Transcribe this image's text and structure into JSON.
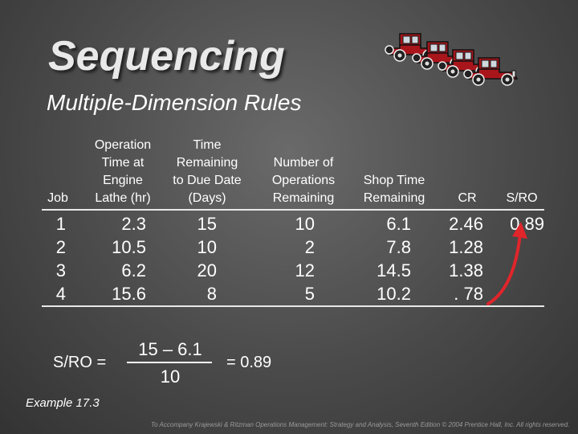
{
  "title": "Sequencing",
  "subtitle": "Multiple-Dimension Rules",
  "decoration": {
    "icon": "vintage-cars-icon",
    "car_color": "#a8161c"
  },
  "table": {
    "headers": {
      "job": "Job",
      "operation_time": "Operation\nTime at\nEngine\nLathe (hr)",
      "time_remaining": "Time\nRemaining\nto Due Date\n(Days)",
      "operations_remaining": "Number of\nOperations\nRemaining",
      "shop_time": "Shop Time\nRemaining",
      "cr": "CR",
      "sro": "S/RO"
    },
    "columns": {
      "job": [
        "1",
        "2",
        "3",
        "4"
      ],
      "operation_time": [
        "2.3",
        "10.5",
        "6.2",
        "15.6"
      ],
      "time_remaining": [
        "15",
        "10",
        "20",
        "8"
      ],
      "operations_remaining": [
        "10",
        "2",
        "12",
        "5"
      ],
      "shop_time": [
        "6.1",
        "7.8",
        "14.5",
        "10.2"
      ],
      "cr": [
        "2.46",
        "1.28",
        "1.38",
        ". 78"
      ],
      "sro": [
        "0.89"
      ]
    }
  },
  "arrow": {
    "icon": "curved-arrow-icon",
    "color": "#e0252b"
  },
  "formula": {
    "lhs": "S/RO =",
    "numerator": "15 – 6.1",
    "denominator": "10",
    "result": "= 0.89"
  },
  "example_label": "Example 17.3",
  "footer": "To Accompany Krajewski & Ritzman Operations Management: Strategy and Analysis, Seventh Edition © 2004 Prentice Hall, Inc. All rights reserved."
}
